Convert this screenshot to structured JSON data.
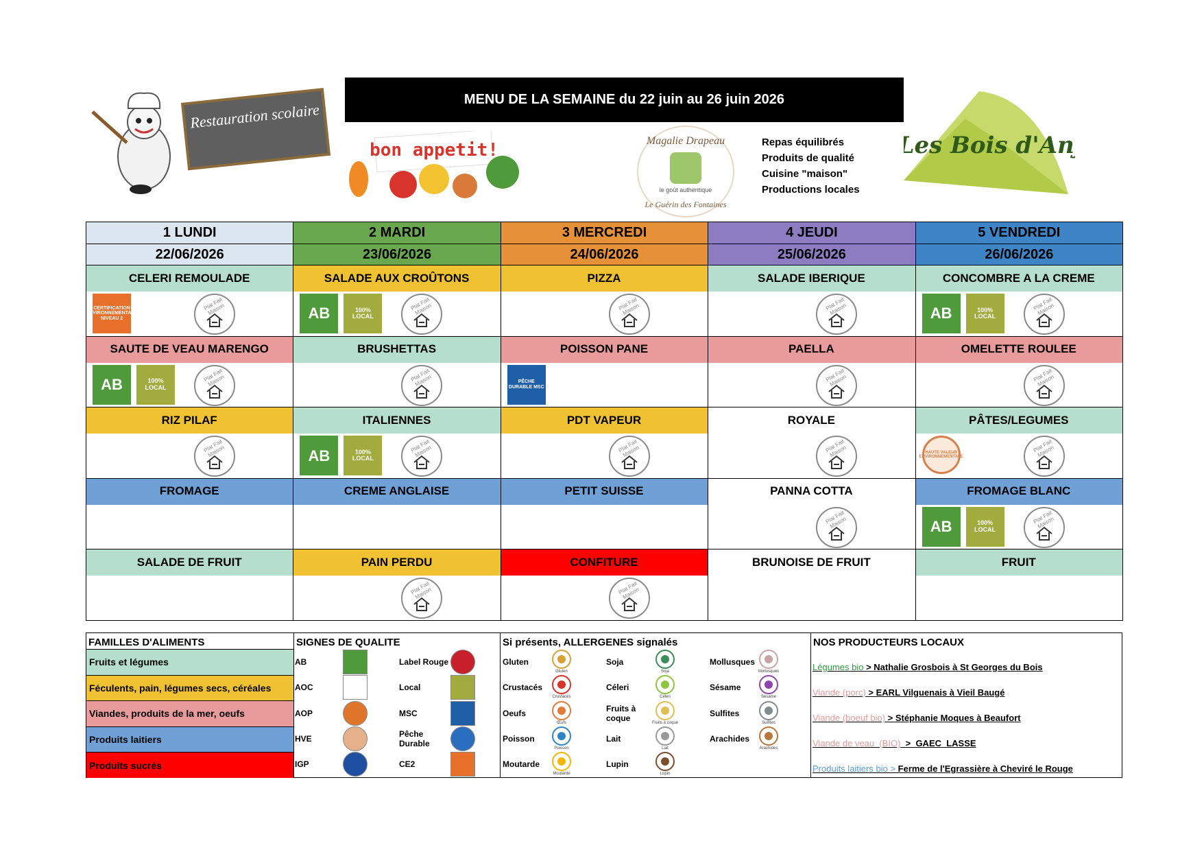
{
  "header": {
    "title": "MENU DE LA SEMAINE du 22 juin au 26 juin 2026",
    "logo_left": "Restauration scolaire",
    "bon_appetit": "bon appetit!",
    "caterer": {
      "name": "Magalie Drapeau",
      "place": "Le Guérin des Fontaines",
      "tagline": "le goût authentique"
    },
    "taglines": [
      "Repas équilibrés",
      "Produits de qualité",
      "Cuisine \"maison\"",
      "Productions locales"
    ],
    "logo_right": "Les Bois d'Anjou"
  },
  "days": [
    {
      "day": "1 LUNDI",
      "date": "22/06/2026",
      "color": "#dce6f1",
      "dishes": [
        {
          "name": "CELERI REMOULADE",
          "color": "#b5dfcc",
          "icons": [
            {
              "label": "CERTIFICATION ENVIRONNEMENTALE NIVEAU 2",
              "color": "#e8702a",
              "shape": "rect"
            },
            {
              "label": "Plat Fait Maison",
              "color": "#8a8a8a",
              "shape": "seal"
            }
          ]
        },
        {
          "name": "SAUTE DE VEAU MARENGO",
          "color": "#e99a9a",
          "icons": [
            {
              "label": "AB",
              "color": "#4f9a3a",
              "shape": "rect"
            },
            {
              "label": "100% LOCAL",
              "color": "#a2ab3e",
              "shape": "rect"
            },
            {
              "label": "Plat Fait Maison",
              "color": "#8a8a8a",
              "shape": "seal"
            }
          ]
        },
        {
          "name": "RIZ PILAF",
          "color": "#f0c232",
          "icons": [
            {
              "label": "Plat Fait Maison",
              "color": "#8a8a8a",
              "shape": "seal"
            }
          ]
        },
        {
          "name": "FROMAGE",
          "color": "#6fa0d6",
          "icons": []
        },
        {
          "name": "SALADE DE FRUIT",
          "color": "#b5dfcc",
          "icons": []
        }
      ]
    },
    {
      "day": "2 MARDI",
      "date": "23/06/2026",
      "color": "#6aa84f",
      "dishes": [
        {
          "name": "SALADE AUX CROÛTONS",
          "color": "#f0c232",
          "icons": [
            {
              "label": "AB",
              "color": "#4f9a3a",
              "shape": "rect"
            },
            {
              "label": "100% LOCAL",
              "color": "#a2ab3e",
              "shape": "rect"
            },
            {
              "label": "Plat Fait Maison",
              "color": "#8a8a8a",
              "shape": "seal"
            }
          ]
        },
        {
          "name": "BRUSHETTAS",
          "color": "#b5dfcc",
          "icons": [
            {
              "label": "Plat Fait Maison",
              "color": "#8a8a8a",
              "shape": "seal"
            }
          ]
        },
        {
          "name": "ITALIENNES",
          "color": "#b5dfcc",
          "icons": [
            {
              "label": "AB",
              "color": "#4f9a3a",
              "shape": "rect"
            },
            {
              "label": "100% LOCAL",
              "color": "#a2ab3e",
              "shape": "rect"
            },
            {
              "label": "Plat Fait Maison",
              "color": "#8a8a8a",
              "shape": "seal"
            }
          ]
        },
        {
          "name": "CREME ANGLAISE",
          "color": "#6fa0d6",
          "icons": []
        },
        {
          "name": "PAIN PERDU",
          "color": "#f0c232",
          "icons": [
            {
              "label": "Plat Fait Maison",
              "color": "#8a8a8a",
              "shape": "seal"
            }
          ]
        }
      ]
    },
    {
      "day": "3 MERCREDI",
      "date": "24/06/2026",
      "color": "#e69138",
      "dishes": [
        {
          "name": "PIZZA",
          "color": "#f0c232",
          "icons": [
            {
              "label": "Plat Fait Maison",
              "color": "#8a8a8a",
              "shape": "seal"
            }
          ]
        },
        {
          "name": "POISSON PANE",
          "color": "#e99a9a",
          "icons": [
            {
              "label": "PÊCHE DURABLE MSC",
              "color": "#1f5fa8",
              "shape": "rect"
            }
          ]
        },
        {
          "name": "PDT VAPEUR",
          "color": "#f0c232",
          "icons": [
            {
              "label": "Plat Fait Maison",
              "color": "#8a8a8a",
              "shape": "seal"
            }
          ]
        },
        {
          "name": "PETIT SUISSE",
          "color": "#6fa0d6",
          "icons": []
        },
        {
          "name": "CONFITURE",
          "color": "#ff0000",
          "icons": [
            {
              "label": "Plat Fait Maison",
              "color": "#8a8a8a",
              "shape": "seal"
            }
          ]
        }
      ]
    },
    {
      "day": "4 JEUDI",
      "date": "25/06/2026",
      "color": "#8e7cc3",
      "dishes": [
        {
          "name": "SALADE IBERIQUE",
          "color": "#b5dfcc",
          "icons": [
            {
              "label": "Plat Fait Maison",
              "color": "#8a8a8a",
              "shape": "seal"
            }
          ]
        },
        {
          "name": "PAELLA",
          "color": "#e99a9a",
          "icons": [
            {
              "label": "Plat Fait Maison",
              "color": "#8a8a8a",
              "shape": "seal"
            }
          ]
        },
        {
          "name": "ROYALE",
          "color": "#ffffff",
          "icons": [
            {
              "label": "Plat Fait Maison",
              "color": "#8a8a8a",
              "shape": "seal"
            }
          ]
        },
        {
          "name": "PANNA COTTA",
          "color": "#ffffff",
          "icons": [
            {
              "label": "Plat Fait Maison",
              "color": "#8a8a8a",
              "shape": "seal"
            }
          ]
        },
        {
          "name": "BRUNOISE DE FRUIT",
          "color": "#ffffff",
          "icons": []
        }
      ]
    },
    {
      "day": "5 VENDREDI",
      "date": "26/06/2026",
      "color": "#3d85c6",
      "dishes": [
        {
          "name": "CONCOMBRE A LA CREME",
          "color": "#b5dfcc",
          "icons": [
            {
              "label": "AB",
              "color": "#4f9a3a",
              "shape": "rect"
            },
            {
              "label": "100% LOCAL",
              "color": "#a2ab3e",
              "shape": "rect"
            },
            {
              "label": "Plat Fait Maison",
              "color": "#8a8a8a",
              "shape": "seal"
            }
          ]
        },
        {
          "name": "OMELETTE ROULEE",
          "color": "#e99a9a",
          "icons": [
            {
              "label": "Plat Fait Maison",
              "color": "#8a8a8a",
              "shape": "seal"
            }
          ]
        },
        {
          "name": "PÂTES/LEGUMES",
          "color": "#b5dfcc",
          "icons": [
            {
              "label": "HAUTE VALEUR ENVIRONNEMENTALE",
              "color": "#d9804a",
              "shape": "circle"
            },
            {
              "label": "Plat Fait Maison",
              "color": "#8a8a8a",
              "shape": "seal"
            }
          ]
        },
        {
          "name": "FROMAGE BLANC",
          "color": "#6fa0d6",
          "icons": [
            {
              "label": "AB",
              "color": "#4f9a3a",
              "shape": "rect"
            },
            {
              "label": "100% LOCAL",
              "color": "#a2ab3e",
              "shape": "rect"
            },
            {
              "label": "Plat Fait Maison",
              "color": "#8a8a8a",
              "shape": "seal"
            }
          ]
        },
        {
          "name": "FRUIT",
          "color": "#b5dfcc",
          "icons": []
        }
      ]
    }
  ],
  "legend": {
    "families": {
      "title": "FAMILLES D'ALIMENTS",
      "items": [
        {
          "name": "Fruits et légumes",
          "color": "#b5dfcc"
        },
        {
          "name": "Féculents, pain, légumes secs, céréales",
          "color": "#f0c232"
        },
        {
          "name": "Viandes, produits de la mer, oeufs",
          "color": "#e99a9a"
        },
        {
          "name": "Produits laitiers",
          "color": "#6fa0d6"
        },
        {
          "name": "Produits sucrés",
          "color": "#ff0000"
        }
      ]
    },
    "signs": {
      "title": "SIGNES DE QUALITE",
      "items": [
        {
          "name": "AB",
          "color": "#4f9a3a",
          "shape": "rect"
        },
        {
          "name": "AOC",
          "color": "#ffffff",
          "shape": "rect"
        },
        {
          "name": "AOP",
          "color": "#e0762a",
          "shape": "circle"
        },
        {
          "name": "HVE",
          "color": "#e6b08a",
          "shape": "circle"
        },
        {
          "name": "IGP",
          "color": "#1f4fa0",
          "shape": "circle"
        },
        {
          "name": "Label Rouge",
          "color": "#c8202a",
          "shape": "circle"
        },
        {
          "name": "Local",
          "color": "#a2ab3e",
          "shape": "rect"
        },
        {
          "name": "MSC",
          "color": "#1f5fa8",
          "shape": "rect"
        },
        {
          "name": "Pêche Durable",
          "color": "#2a6ec0",
          "shape": "circle"
        },
        {
          "name": "CE2",
          "color": "#e8702a",
          "shape": "rect"
        }
      ]
    },
    "allergens": {
      "title": "Si présents, ALLERGENES signalés",
      "items": [
        {
          "name": "Gluten",
          "caption": "Gluten",
          "color": "#d9a035"
        },
        {
          "name": "Crustacés",
          "caption": "Crustacés",
          "color": "#d9342b"
        },
        {
          "name": "Oeufs",
          "caption": "Œufs",
          "color": "#e07b39"
        },
        {
          "name": "Poisson",
          "caption": "Poisson",
          "color": "#2e86c1"
        },
        {
          "name": "Moutarde",
          "caption": "Moutarde",
          "color": "#f2b705"
        },
        {
          "name": "Soja",
          "caption": "Soja",
          "color": "#3c8d5a"
        },
        {
          "name": "Céleri",
          "caption": "Céleri",
          "color": "#8cc63f"
        },
        {
          "name": "Fruits à coque",
          "caption": "Fruits à coque",
          "color": "#e0be50"
        },
        {
          "name": "Lait",
          "caption": "Lait",
          "color": "#999999"
        },
        {
          "name": "Lupin",
          "caption": "Lupin",
          "color": "#7a4e2d"
        },
        {
          "name": "Mollusques",
          "caption": "Mollusques",
          "color": "#c9a3a3"
        },
        {
          "name": "Sésame",
          "caption": "Sésame",
          "color": "#8e44ad"
        },
        {
          "name": "Sulfites",
          "caption": "Sulfites",
          "color": "#7f8c8d"
        },
        {
          "name": "Arachides",
          "caption": "Arachides",
          "color": "#b9773b"
        }
      ]
    },
    "producers": {
      "title": "NOS PRODUCTEURS LOCAUX",
      "items": [
        {
          "label": "Légumes bio",
          "color": "#2e9b3e",
          "text": " > Nathalie Grosbois à St Georges du Bois"
        },
        {
          "label": "Viande (porc)",
          "color": "#e79a9a",
          "text": " > EARL Vilguenais à Vieil Baugé"
        },
        {
          "label": "Viande (boeuf bio)",
          "color": "#e79a9a",
          "text": " > Stéphanie Moques à Beaufort"
        },
        {
          "label": "Viande de veau  (BIO)",
          "color": "#e79a9a",
          "text": "  >  GAEC  LASSE"
        },
        {
          "label": "Produits laitiers bio >",
          "color": "#5b9bd5",
          "text": " Ferme de l'Egrassière à Cheviré le Rouge"
        }
      ]
    }
  }
}
